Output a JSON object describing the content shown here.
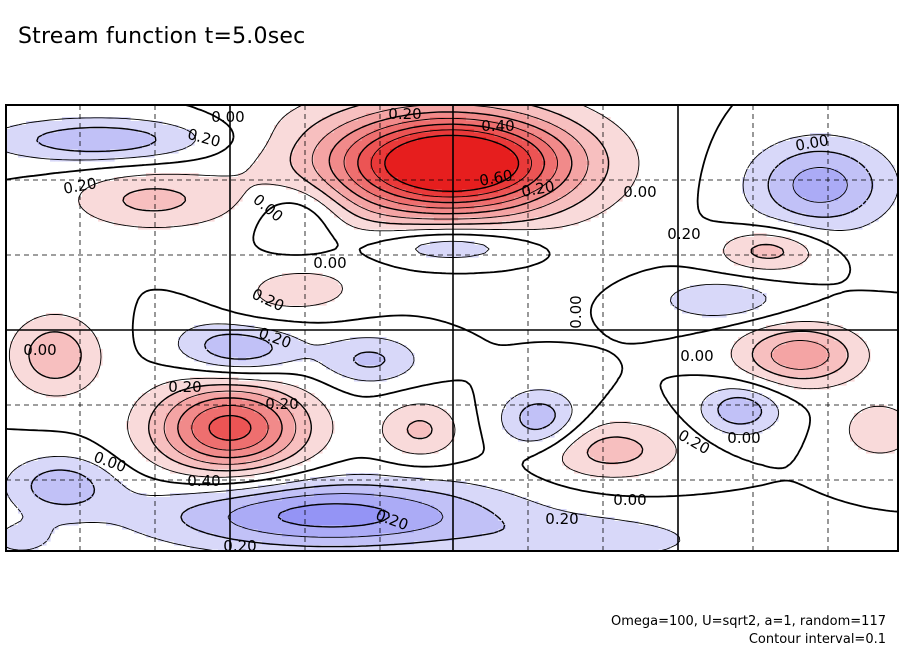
{
  "title": "Stream function t=5.0sec",
  "footer": {
    "params": "Omega=100, U=sqrt2, a=1, random=117",
    "interval": "Contour interval=0.1"
  },
  "chart_data": {
    "type": "heatmap",
    "title": "Stream function t=5.0sec",
    "contour_interval": 0.1,
    "grid": true,
    "colors": {
      "positive": "#e62020",
      "negative": "#3333e6",
      "zero": "#ffffff"
    },
    "field_extrema": [
      {
        "sign": "max",
        "value": 0.75,
        "label": "upper-center"
      },
      {
        "sign": "max",
        "value": 0.65,
        "label": "lower-left-center"
      },
      {
        "sign": "min",
        "value": -0.45,
        "label": "bottom-center"
      },
      {
        "sign": "min",
        "value": -0.35,
        "label": "left-center"
      },
      {
        "sign": "min",
        "value": -0.35,
        "label": "upper-right"
      }
    ],
    "contour_labels": [
      "0.00",
      "0.20",
      "0.20",
      "0.40",
      "0.60",
      "0.20",
      "0.00",
      "0.20",
      "0.00",
      "0.20",
      "0.00",
      "0.00",
      "0.20",
      "0.20",
      "0.00",
      "0.00",
      "0.20",
      "0.20",
      "0.00",
      "0.20",
      "0.00",
      "0.40",
      "0.20",
      "0.20",
      "0.00",
      "0.20",
      "0.00"
    ]
  }
}
